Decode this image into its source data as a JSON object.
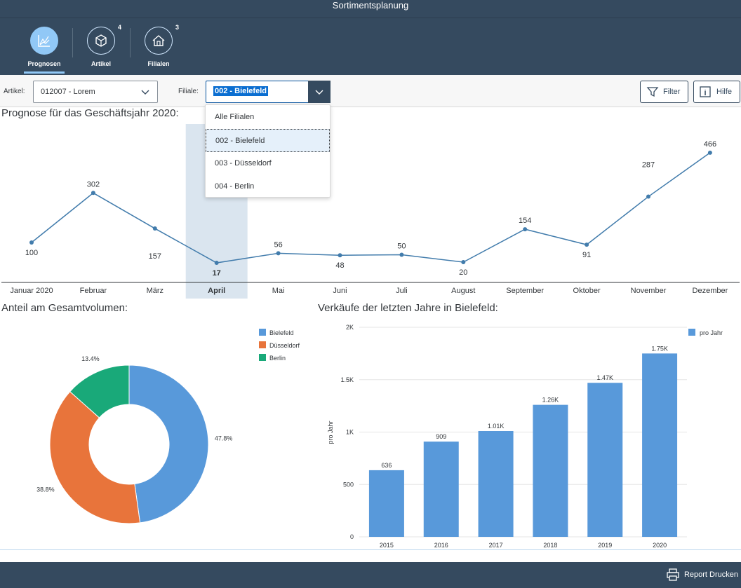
{
  "shell": {
    "title": "Sortimentsplanung"
  },
  "tabs": [
    {
      "label": "Prognosen",
      "count": "",
      "icon": "line-chart-icon",
      "active": true
    },
    {
      "label": "Artikel",
      "count": "4",
      "icon": "cube-icon",
      "active": false
    },
    {
      "label": "Filialen",
      "count": "3",
      "icon": "home-icon",
      "active": false
    }
  ],
  "toolbar": {
    "artikel_label": "Artikel:",
    "artikel_value": "012007 - Lorem",
    "filiale_label": "Filiale:",
    "filiale_value": "002 - Bielefeld",
    "filter_label": "Filter",
    "hilfe_label": "Hilfe"
  },
  "dropdown": {
    "options": [
      "Alle Filialen",
      "002 - Bielefeld",
      "003 - Düsseldorf",
      "004 - Berlin"
    ],
    "selected": "002 - Bielefeld"
  },
  "sections": {
    "forecast_title": "Prognose für das Geschäftsjahr 2020:",
    "share_title": "Anteil am Gesamtvolumen:",
    "sales_title": "Verkäufe der letzten Jahre in Bielefeld:"
  },
  "footer": {
    "print_label": "Report Drucken"
  },
  "colors": {
    "shell": "#354a5f",
    "line": "#427cac",
    "highlight": "#dae5ef",
    "bielefeld": "#5899da",
    "duesseldorf": "#e8743b",
    "berlin": "#19a979",
    "bar": "#5899da"
  },
  "chart_data": [
    {
      "type": "line",
      "categories": [
        "Januar 2020",
        "Februar",
        "März",
        "April",
        "Mai",
        "Juni",
        "Juli",
        "August",
        "September",
        "Oktober",
        "November",
        "Dezember"
      ],
      "series": [
        {
          "values": [
            100,
            302,
            157,
            17,
            56,
            48,
            50,
            20,
            154,
            91,
            287,
            466
          ]
        }
      ],
      "data_labels": [
        "100",
        "302",
        "157",
        "17",
        "56",
        "48",
        "50",
        "20",
        "154",
        "91",
        "287",
        "466"
      ],
      "highlighted_category": "April",
      "title": "Prognose für das Geschäftsjahr 2020:",
      "ylim": [
        0,
        500
      ],
      "grid": false
    },
    {
      "type": "pie",
      "donut": true,
      "title": "Anteil am Gesamtvolumen:",
      "slices": [
        {
          "name": "Bielefeld",
          "value": 47.8,
          "label": "47.8%"
        },
        {
          "name": "Düsseldorf",
          "value": 38.8,
          "label": "38.8%"
        },
        {
          "name": "Berlin",
          "value": 13.4,
          "label": "13.4%"
        }
      ],
      "legend": "top-right"
    },
    {
      "type": "bar",
      "title": "Verkäufe der letzten Jahre in Bielefeld:",
      "categories": [
        "2015",
        "2016",
        "2017",
        "2018",
        "2019",
        "2020"
      ],
      "series": [
        {
          "name": "pro Jahr",
          "values": [
            636,
            909,
            1010,
            1260,
            1470,
            1750
          ]
        }
      ],
      "data_labels": [
        "636",
        "909",
        "1.01K",
        "1.26K",
        "1.47K",
        "1.75K"
      ],
      "ylabel": "pro Jahr",
      "ylim": [
        0,
        2000
      ],
      "yticks": [
        0,
        500,
        1000,
        1500,
        2000
      ],
      "ytick_labels": [
        "0",
        "500",
        "1K",
        "1.5K",
        "2K"
      ],
      "grid": true,
      "legend": "top-right"
    }
  ]
}
